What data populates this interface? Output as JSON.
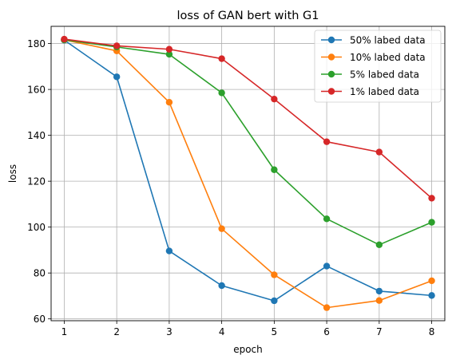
{
  "chart_data": {
    "type": "line",
    "title": "loss of GAN bert with G1",
    "xlabel": "epoch",
    "ylabel": "loss",
    "x": [
      1,
      2,
      3,
      4,
      5,
      6,
      7,
      8
    ],
    "xlim": [
      0.75,
      8.25
    ],
    "ylim": [
      59.2,
      187.5
    ],
    "xticks": [
      1,
      2,
      3,
      4,
      5,
      6,
      7,
      8
    ],
    "yticks": [
      60,
      80,
      100,
      120,
      140,
      160,
      180
    ],
    "grid": true,
    "legend_position": "top-right",
    "series": [
      {
        "name": "50% labed data",
        "color": "#1f77b4",
        "values": [
          181.5,
          165.5,
          89.6,
          74.5,
          67.9,
          83.0,
          72.1,
          70.2
        ]
      },
      {
        "name": "10% labed data",
        "color": "#ff7f0e",
        "values": [
          181.6,
          176.8,
          154.4,
          99.3,
          79.2,
          64.9,
          68.0,
          76.6
        ]
      },
      {
        "name": "5% labed data",
        "color": "#2ca02c",
        "values": [
          181.6,
          178.5,
          175.3,
          158.5,
          125.0,
          103.6,
          92.3,
          102.1
        ]
      },
      {
        "name": "1% labed data",
        "color": "#d62728",
        "values": [
          181.9,
          179.0,
          177.5,
          173.4,
          155.8,
          137.2,
          132.7,
          112.6
        ]
      }
    ]
  }
}
